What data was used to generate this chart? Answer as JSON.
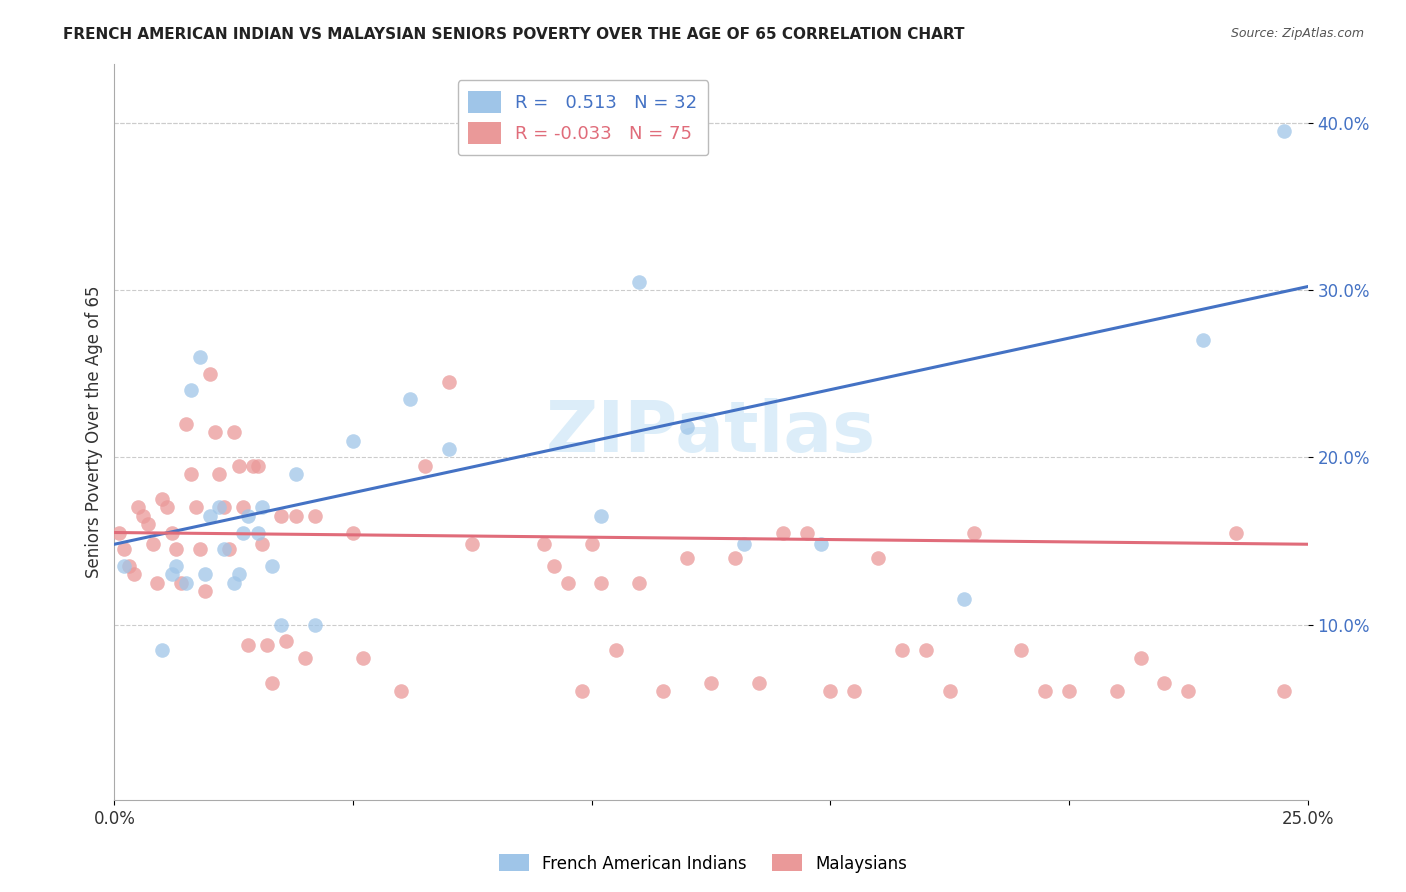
{
  "title": "FRENCH AMERICAN INDIAN VS MALAYSIAN SENIORS POVERTY OVER THE AGE OF 65 CORRELATION CHART",
  "source": "Source: ZipAtlas.com",
  "ylabel": "Seniors Poverty Over the Age of 65",
  "xlim": [
    0,
    0.25
  ],
  "ylim": [
    -0.005,
    0.435
  ],
  "yticks": [
    0.1,
    0.2,
    0.3,
    0.4
  ],
  "ytick_labels": [
    "10.0%",
    "20.0%",
    "30.0%",
    "40.0%"
  ],
  "xticks": [
    0.0,
    0.05,
    0.1,
    0.15,
    0.2,
    0.25
  ],
  "xtick_labels": [
    "0.0%",
    "",
    "",
    "",
    "",
    "25.0%"
  ],
  "blue_R": 0.513,
  "blue_N": 32,
  "pink_R": -0.033,
  "pink_N": 75,
  "blue_color": "#9fc5e8",
  "pink_color": "#ea9999",
  "blue_line_color": "#4472c4",
  "pink_line_color": "#e06c7a",
  "watermark": "ZIPatlas",
  "blue_line_x0": 0.0,
  "blue_line_y0": 0.148,
  "blue_line_x1": 0.25,
  "blue_line_y1": 0.302,
  "pink_line_x0": 0.0,
  "pink_line_y0": 0.155,
  "pink_line_x1": 0.25,
  "pink_line_y1": 0.148,
  "blue_scatter_x": [
    0.002,
    0.01,
    0.012,
    0.013,
    0.015,
    0.016,
    0.018,
    0.019,
    0.02,
    0.022,
    0.023,
    0.025,
    0.026,
    0.027,
    0.028,
    0.03,
    0.031,
    0.033,
    0.035,
    0.038,
    0.042,
    0.05,
    0.062,
    0.07,
    0.102,
    0.11,
    0.12,
    0.132,
    0.148,
    0.178,
    0.228,
    0.245
  ],
  "blue_scatter_y": [
    0.135,
    0.085,
    0.13,
    0.135,
    0.125,
    0.24,
    0.26,
    0.13,
    0.165,
    0.17,
    0.145,
    0.125,
    0.13,
    0.155,
    0.165,
    0.155,
    0.17,
    0.135,
    0.1,
    0.19,
    0.1,
    0.21,
    0.235,
    0.205,
    0.165,
    0.305,
    0.218,
    0.148,
    0.148,
    0.115,
    0.27,
    0.395
  ],
  "pink_scatter_x": [
    0.001,
    0.002,
    0.003,
    0.004,
    0.005,
    0.006,
    0.007,
    0.008,
    0.009,
    0.01,
    0.011,
    0.012,
    0.013,
    0.014,
    0.015,
    0.016,
    0.017,
    0.018,
    0.019,
    0.02,
    0.021,
    0.022,
    0.023,
    0.024,
    0.025,
    0.026,
    0.027,
    0.028,
    0.029,
    0.03,
    0.031,
    0.032,
    0.033,
    0.035,
    0.036,
    0.038,
    0.04,
    0.042,
    0.05,
    0.052,
    0.06,
    0.065,
    0.07,
    0.075,
    0.09,
    0.092,
    0.095,
    0.098,
    0.1,
    0.102,
    0.105,
    0.11,
    0.115,
    0.12,
    0.125,
    0.13,
    0.135,
    0.14,
    0.145,
    0.15,
    0.155,
    0.16,
    0.165,
    0.17,
    0.175,
    0.18,
    0.19,
    0.195,
    0.2,
    0.21,
    0.215,
    0.22,
    0.225,
    0.235,
    0.245
  ],
  "pink_scatter_y": [
    0.155,
    0.145,
    0.135,
    0.13,
    0.17,
    0.165,
    0.16,
    0.148,
    0.125,
    0.175,
    0.17,
    0.155,
    0.145,
    0.125,
    0.22,
    0.19,
    0.17,
    0.145,
    0.12,
    0.25,
    0.215,
    0.19,
    0.17,
    0.145,
    0.215,
    0.195,
    0.17,
    0.088,
    0.195,
    0.195,
    0.148,
    0.088,
    0.065,
    0.165,
    0.09,
    0.165,
    0.08,
    0.165,
    0.155,
    0.08,
    0.06,
    0.195,
    0.245,
    0.148,
    0.148,
    0.135,
    0.125,
    0.06,
    0.148,
    0.125,
    0.085,
    0.125,
    0.06,
    0.14,
    0.065,
    0.14,
    0.065,
    0.155,
    0.155,
    0.06,
    0.06,
    0.14,
    0.085,
    0.085,
    0.06,
    0.155,
    0.085,
    0.06,
    0.06,
    0.06,
    0.08,
    0.065,
    0.06,
    0.155,
    0.06
  ]
}
